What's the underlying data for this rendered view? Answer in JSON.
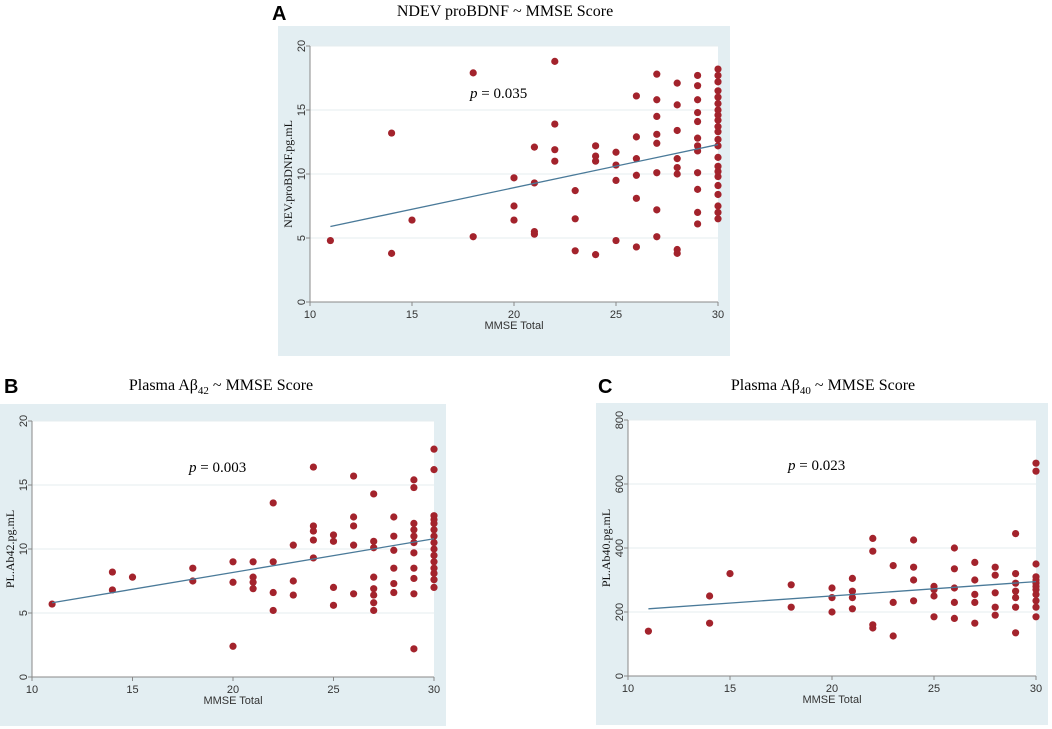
{
  "chart_data": [
    {
      "type": "scatter",
      "letter": "A",
      "title": "NDEV proBDNF ~ MMSE Score",
      "xlabel": "MMSE Total",
      "ylabel": "NEV.proBDNF.pg.mL",
      "annotation": {
        "p_symbol": "p",
        "p_text": " = 0.035"
      },
      "xlim": [
        10,
        30
      ],
      "ylim": [
        0,
        20
      ],
      "xticks": [
        10,
        15,
        20,
        25,
        30
      ],
      "yticks": [
        0,
        5,
        10,
        15,
        20
      ],
      "fit_line": [
        [
          11,
          5.9
        ],
        [
          30,
          12.3
        ]
      ],
      "points": [
        [
          11,
          4.8
        ],
        [
          14,
          3.8
        ],
        [
          14,
          13.2
        ],
        [
          15,
          6.4
        ],
        [
          18,
          5.1
        ],
        [
          18,
          17.9
        ],
        [
          20,
          6.4
        ],
        [
          20,
          7.5
        ],
        [
          20,
          9.7
        ],
        [
          21,
          5.3
        ],
        [
          21,
          5.5
        ],
        [
          21,
          9.3
        ],
        [
          21,
          12.1
        ],
        [
          22,
          11.0
        ],
        [
          22,
          11.9
        ],
        [
          22,
          13.9
        ],
        [
          22,
          18.8
        ],
        [
          23,
          4.0
        ],
        [
          23,
          6.5
        ],
        [
          23,
          8.7
        ],
        [
          24,
          3.7
        ],
        [
          24,
          11.0
        ],
        [
          24,
          11.4
        ],
        [
          24,
          12.2
        ],
        [
          25,
          4.8
        ],
        [
          25,
          9.5
        ],
        [
          25,
          10.7
        ],
        [
          25,
          11.7
        ],
        [
          26,
          4.3
        ],
        [
          26,
          8.1
        ],
        [
          26,
          9.9
        ],
        [
          26,
          11.2
        ],
        [
          26,
          12.9
        ],
        [
          26,
          16.1
        ],
        [
          27,
          5.1
        ],
        [
          27,
          7.2
        ],
        [
          27,
          10.1
        ],
        [
          27,
          12.4
        ],
        [
          27,
          13.1
        ],
        [
          27,
          14.5
        ],
        [
          27,
          15.8
        ],
        [
          27,
          17.8
        ],
        [
          28,
          3.8
        ],
        [
          28,
          4.1
        ],
        [
          28,
          10.0
        ],
        [
          28,
          10.5
        ],
        [
          28,
          11.2
        ],
        [
          28,
          13.4
        ],
        [
          28,
          15.4
        ],
        [
          28,
          17.1
        ],
        [
          29,
          6.1
        ],
        [
          29,
          7.0
        ],
        [
          29,
          8.8
        ],
        [
          29,
          10.1
        ],
        [
          29,
          11.8
        ],
        [
          29,
          12.2
        ],
        [
          29,
          12.8
        ],
        [
          29,
          14.1
        ],
        [
          29,
          14.8
        ],
        [
          29,
          15.8
        ],
        [
          29,
          16.9
        ],
        [
          29,
          17.7
        ],
        [
          30,
          6.5
        ],
        [
          30,
          7.0
        ],
        [
          30,
          7.5
        ],
        [
          30,
          8.4
        ],
        [
          30,
          9.1
        ],
        [
          30,
          9.8
        ],
        [
          30,
          10.2
        ],
        [
          30,
          10.6
        ],
        [
          30,
          11.3
        ],
        [
          30,
          12.2
        ],
        [
          30,
          12.7
        ],
        [
          30,
          13.3
        ],
        [
          30,
          13.7
        ],
        [
          30,
          14.2
        ],
        [
          30,
          14.6
        ],
        [
          30,
          15.0
        ],
        [
          30,
          15.5
        ],
        [
          30,
          16.0
        ],
        [
          30,
          16.5
        ],
        [
          30,
          17.2
        ],
        [
          30,
          17.7
        ],
        [
          30,
          18.2
        ]
      ]
    },
    {
      "type": "scatter",
      "letter": "B",
      "title_main": "Plasma Aβ",
      "title_sub": "42",
      "title_tail": " ~ MMSE Score",
      "xlabel": "MMSE Total",
      "ylabel": "PL.Ab42.pg.mL",
      "annotation": {
        "p_symbol": "p",
        "p_text": " = 0.003"
      },
      "xlim": [
        10,
        30
      ],
      "ylim": [
        0,
        20
      ],
      "xticks": [
        10,
        15,
        20,
        25,
        30
      ],
      "yticks": [
        0,
        5,
        10,
        15,
        20
      ],
      "fit_line": [
        [
          11,
          5.8
        ],
        [
          30,
          10.8
        ]
      ],
      "points": [
        [
          11,
          5.7
        ],
        [
          14,
          6.8
        ],
        [
          14,
          8.2
        ],
        [
          15,
          7.8
        ],
        [
          18,
          7.5
        ],
        [
          18,
          8.5
        ],
        [
          20,
          2.4
        ],
        [
          20,
          7.4
        ],
        [
          20,
          9.0
        ],
        [
          21,
          6.9
        ],
        [
          21,
          7.4
        ],
        [
          21,
          7.8
        ],
        [
          21,
          9.0
        ],
        [
          22,
          5.2
        ],
        [
          22,
          6.6
        ],
        [
          22,
          9.0
        ],
        [
          22,
          13.6
        ],
        [
          23,
          6.4
        ],
        [
          23,
          7.5
        ],
        [
          23,
          10.3
        ],
        [
          24,
          9.3
        ],
        [
          24,
          10.7
        ],
        [
          24,
          11.4
        ],
        [
          24,
          11.8
        ],
        [
          24,
          16.4
        ],
        [
          25,
          5.6
        ],
        [
          25,
          7.0
        ],
        [
          25,
          10.6
        ],
        [
          25,
          11.1
        ],
        [
          26,
          6.5
        ],
        [
          26,
          10.3
        ],
        [
          26,
          11.8
        ],
        [
          26,
          12.5
        ],
        [
          26,
          15.7
        ],
        [
          27,
          5.2
        ],
        [
          27,
          5.8
        ],
        [
          27,
          6.4
        ],
        [
          27,
          6.9
        ],
        [
          27,
          7.8
        ],
        [
          27,
          10.1
        ],
        [
          27,
          10.6
        ],
        [
          27,
          14.3
        ],
        [
          28,
          6.6
        ],
        [
          28,
          7.3
        ],
        [
          28,
          8.5
        ],
        [
          28,
          9.9
        ],
        [
          28,
          11.0
        ],
        [
          28,
          12.5
        ],
        [
          29,
          2.2
        ],
        [
          29,
          6.5
        ],
        [
          29,
          7.7
        ],
        [
          29,
          8.5
        ],
        [
          29,
          9.7
        ],
        [
          29,
          10.5
        ],
        [
          29,
          11.0
        ],
        [
          29,
          11.5
        ],
        [
          29,
          12.0
        ],
        [
          29,
          14.8
        ],
        [
          29,
          15.4
        ],
        [
          30,
          7.0
        ],
        [
          30,
          7.6
        ],
        [
          30,
          8.1
        ],
        [
          30,
          8.5
        ],
        [
          30,
          9.0
        ],
        [
          30,
          9.5
        ],
        [
          30,
          10.0
        ],
        [
          30,
          10.5
        ],
        [
          30,
          11.0
        ],
        [
          30,
          11.5
        ],
        [
          30,
          12.0
        ],
        [
          30,
          12.3
        ],
        [
          30,
          12.6
        ],
        [
          30,
          16.2
        ],
        [
          30,
          17.8
        ]
      ]
    },
    {
      "type": "scatter",
      "letter": "C",
      "title_main": "Plasma Aβ",
      "title_sub": "40",
      "title_tail": " ~ MMSE Score",
      "xlabel": "MMSE Total",
      "ylabel": "PL.Ab40.pg.mL",
      "annotation": {
        "p_symbol": "p",
        "p_text": " = 0.023"
      },
      "xlim": [
        10,
        30
      ],
      "ylim": [
        0,
        800
      ],
      "xticks": [
        10,
        15,
        20,
        25,
        30
      ],
      "yticks": [
        0,
        200,
        400,
        600,
        800
      ],
      "fit_line": [
        [
          11,
          210
        ],
        [
          30,
          295
        ]
      ],
      "points": [
        [
          11,
          140
        ],
        [
          14,
          165
        ],
        [
          14,
          250
        ],
        [
          15,
          320
        ],
        [
          18,
          215
        ],
        [
          18,
          285
        ],
        [
          20,
          200
        ],
        [
          20,
          245
        ],
        [
          20,
          275
        ],
        [
          21,
          210
        ],
        [
          21,
          245
        ],
        [
          21,
          265
        ],
        [
          21,
          305
        ],
        [
          22,
          150
        ],
        [
          22,
          160
        ],
        [
          22,
          390
        ],
        [
          22,
          430
        ],
        [
          23,
          125
        ],
        [
          23,
          230
        ],
        [
          23,
          345
        ],
        [
          24,
          235
        ],
        [
          24,
          300
        ],
        [
          24,
          340
        ],
        [
          24,
          425
        ],
        [
          25,
          185
        ],
        [
          25,
          250
        ],
        [
          25,
          270
        ],
        [
          25,
          280
        ],
        [
          26,
          180
        ],
        [
          26,
          230
        ],
        [
          26,
          275
        ],
        [
          26,
          335
        ],
        [
          26,
          400
        ],
        [
          27,
          165
        ],
        [
          27,
          230
        ],
        [
          27,
          255
        ],
        [
          27,
          300
        ],
        [
          27,
          355
        ],
        [
          28,
          190
        ],
        [
          28,
          215
        ],
        [
          28,
          260
        ],
        [
          28,
          315
        ],
        [
          28,
          340
        ],
        [
          29,
          135
        ],
        [
          29,
          215
        ],
        [
          29,
          245
        ],
        [
          29,
          265
        ],
        [
          29,
          290
        ],
        [
          29,
          320
        ],
        [
          29,
          445
        ],
        [
          30,
          185
        ],
        [
          30,
          215
        ],
        [
          30,
          235
        ],
        [
          30,
          255
        ],
        [
          30,
          270
        ],
        [
          30,
          280
        ],
        [
          30,
          290
        ],
        [
          30,
          300
        ],
        [
          30,
          310
        ],
        [
          30,
          350
        ],
        [
          30,
          640
        ],
        [
          30,
          665
        ]
      ]
    }
  ],
  "colors": {
    "panel_bg": "#e3eef2",
    "plot_bg": "#ffffff",
    "grid": "#e4ecef",
    "marker": "#a3232c",
    "fit_line": "#4a7a99",
    "axis": "#888888"
  }
}
